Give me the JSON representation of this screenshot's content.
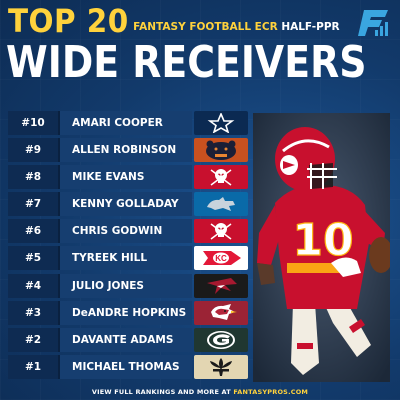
{
  "header": {
    "top_label": "TOP 20",
    "subtitle_ecr": "FANTASY FOOTBALL ECR",
    "subtitle_ppr": "HALF-PPR",
    "main_title": "WIDE RECEIVERS",
    "logo_icon": "fantasypros-logo-icon"
  },
  "colors": {
    "accent": "#ffd23c",
    "background": "#123a6b",
    "rank_box": "#0e2b52",
    "name_box": "#163e70"
  },
  "rankings": [
    {
      "rank": "#10",
      "name": "AMARI COOPER",
      "team_icon": "cowboys-star-icon"
    },
    {
      "rank": "#9",
      "name": "ALLEN ROBINSON",
      "team_icon": "bears-logo-icon"
    },
    {
      "rank": "#8",
      "name": "MIKE EVANS",
      "team_icon": "buccaneers-flag-icon"
    },
    {
      "rank": "#7",
      "name": "KENNY GOLLADAY",
      "team_icon": "lions-logo-icon"
    },
    {
      "rank": "#6",
      "name": "CHRIS GODWIN",
      "team_icon": "buccaneers-flag-icon"
    },
    {
      "rank": "#5",
      "name": "TYREEK HILL",
      "team_icon": "chiefs-arrowhead-icon"
    },
    {
      "rank": "#4",
      "name": "JULIO JONES",
      "team_icon": "falcons-logo-icon"
    },
    {
      "rank": "#3",
      "name": "DeANDRE HOPKINS",
      "team_icon": "cardinals-logo-icon"
    },
    {
      "rank": "#2",
      "name": "DAVANTE ADAMS",
      "team_icon": "packers-g-icon"
    },
    {
      "rank": "#1",
      "name": "MICHAEL THOMAS",
      "team_icon": "saints-fleur-icon"
    }
  ],
  "photo": {
    "jersey_number": "10"
  },
  "footer": {
    "text": "VIEW FULL RANKINGS AND MORE AT ",
    "site": "FANTASYPROS.COM"
  }
}
